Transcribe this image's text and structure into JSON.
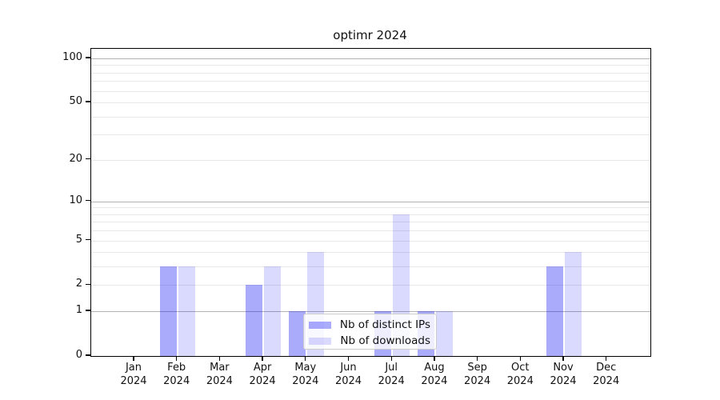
{
  "chart_data": {
    "type": "bar",
    "title": "optimr 2024",
    "categories": [
      "Jan",
      "Feb",
      "Mar",
      "Apr",
      "May",
      "Jun",
      "Jul",
      "Aug",
      "Sep",
      "Oct",
      "Nov",
      "Dec"
    ],
    "x_tick_second_line": "2024",
    "series": [
      {
        "name": "Nb of distinct IPs",
        "color": "#a8a8fa",
        "fill": "rgba(10,10,245,0.34)",
        "values": [
          0,
          3,
          0,
          2,
          1,
          0,
          1,
          1,
          0,
          0,
          3,
          0
        ]
      },
      {
        "name": "Nb of downloads",
        "color": "#d8d8fa",
        "fill": "rgba(10,10,245,0.15)",
        "values": [
          0,
          3,
          0,
          3,
          4,
          0,
          8,
          1,
          0,
          0,
          4,
          0
        ]
      }
    ],
    "y_ticks": [
      0,
      1,
      2,
      5,
      10,
      20,
      50,
      100
    ],
    "scale": "log1p",
    "ylim": [
      0,
      116
    ],
    "grid": {
      "minor_values": [
        2,
        3,
        4,
        5,
        6,
        7,
        8,
        9,
        20,
        30,
        40,
        50,
        60,
        70,
        80,
        90
      ],
      "decade_values": [
        1,
        10,
        100
      ],
      "minor_color": "#e8e8e8",
      "decade_color": "#b3b3b3"
    },
    "legend_position": "lower center"
  }
}
